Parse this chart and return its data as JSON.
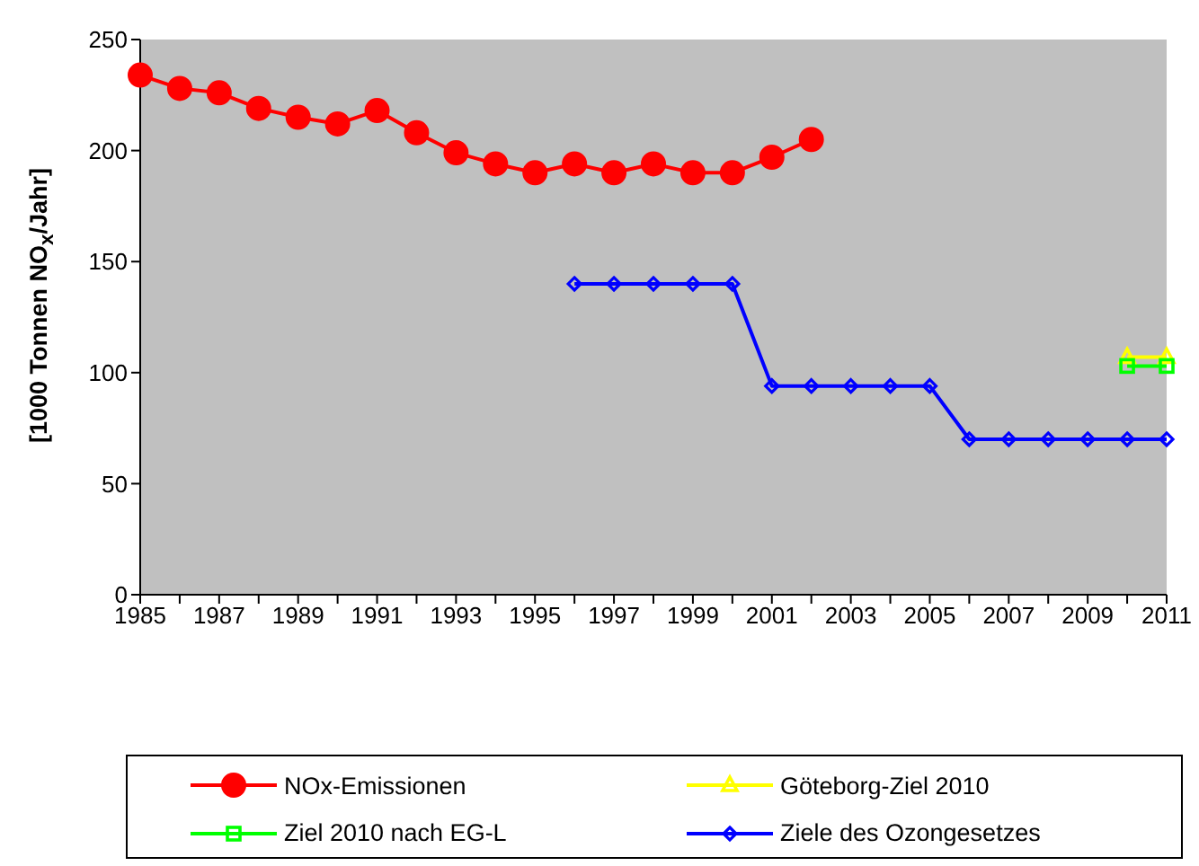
{
  "chart_data": {
    "type": "line",
    "ylabel": "[1000 Tonnen NO$_{x}$/Jahr]",
    "x": [
      1985,
      1986,
      1987,
      1988,
      1989,
      1990,
      1991,
      1992,
      1993,
      1994,
      1995,
      1996,
      1997,
      1998,
      1999,
      2000,
      2001,
      2002,
      2003,
      2004,
      2005,
      2006,
      2007,
      2008,
      2009,
      2010,
      2011
    ],
    "xlim": [
      1985,
      2011
    ],
    "xticks": [
      1985,
      {
        "value": 1986,
        "label": null
      },
      1987,
      {
        "value": 1988,
        "label": null
      },
      1989,
      {
        "value": 1990,
        "label": null
      },
      1991,
      {
        "value": 1992,
        "label": null
      },
      1993,
      {
        "value": 1994,
        "label": null
      },
      1995,
      {
        "value": 1996,
        "label": null
      },
      1997,
      {
        "value": 1998,
        "label": null
      },
      1999,
      {
        "value": 2000,
        "label": null
      },
      2001,
      {
        "value": 2002,
        "label": null
      },
      2003,
      {
        "value": 2004,
        "label": null
      },
      2005,
      {
        "value": 2006,
        "label": null
      },
      2007,
      {
        "value": 2008,
        "label": null
      },
      2009,
      {
        "value": 2010,
        "label": null
      },
      2011
    ],
    "ylim": [
      0,
      250
    ],
    "yticks": [
      0,
      50,
      100,
      150,
      200,
      250
    ],
    "grid": false,
    "legend": "bottom",
    "line_style": "solid",
    "series": [
      {
        "name": "NOx-Emissionen",
        "color": "#ff0000",
        "marker": "circle",
        "values": [
          234,
          228,
          226,
          219,
          215,
          212,
          218,
          208,
          199,
          194,
          190,
          194,
          190,
          194,
          190,
          190,
          197,
          205,
          null,
          null,
          null,
          null,
          null,
          null,
          null,
          null,
          null
        ]
      },
      {
        "name": "Göteborg-Ziel 2010",
        "color": "#ffff00",
        "marker": "triangle",
        "values": [
          null,
          null,
          null,
          null,
          null,
          null,
          null,
          null,
          null,
          null,
          null,
          null,
          null,
          null,
          null,
          null,
          null,
          null,
          null,
          null,
          null,
          null,
          null,
          null,
          null,
          107,
          107
        ]
      },
      {
        "name": "Ziel 2010 nach EG-L",
        "color": "#00ff00",
        "marker": "square",
        "values": [
          null,
          null,
          null,
          null,
          null,
          null,
          null,
          null,
          null,
          null,
          null,
          null,
          null,
          null,
          null,
          null,
          null,
          null,
          null,
          null,
          null,
          null,
          null,
          null,
          null,
          103,
          103
        ]
      },
      {
        "name": "Ziele des Ozongesetzes",
        "color": "#0000ff",
        "marker": "diamond",
        "values": [
          null,
          null,
          null,
          null,
          null,
          null,
          null,
          null,
          null,
          null,
          null,
          140,
          140,
          140,
          140,
          140,
          94,
          94,
          94,
          94,
          94,
          70,
          70,
          70,
          70,
          70,
          70
        ]
      }
    ]
  }
}
